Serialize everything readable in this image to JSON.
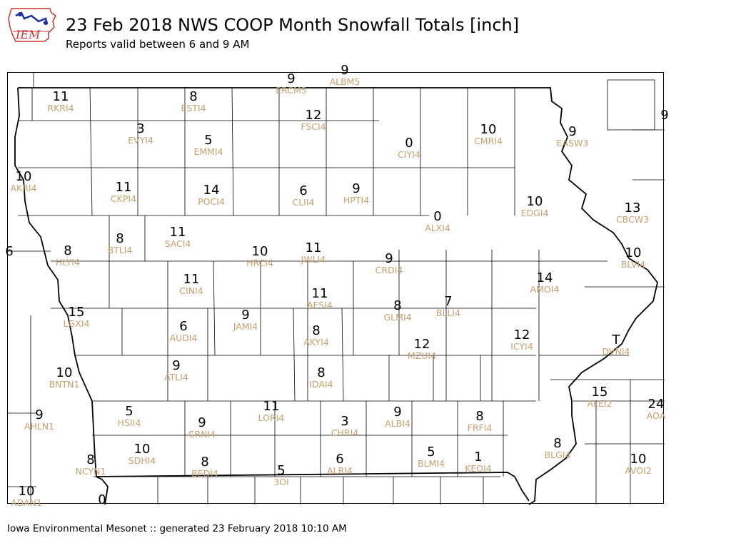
{
  "logo": {
    "text": "IEM"
  },
  "header": {
    "title": "23 Feb 2018 NWS COOP Month Snowfall Totals [inch]",
    "subtitle": "Reports valid between 6 and 9 AM"
  },
  "footer": {
    "text": "Iowa Environmental Mesonet :: generated 23 February 2018 10:10 AM"
  },
  "colors": {
    "value": "#000000",
    "station_id": "#c8a070",
    "border": "#000000"
  },
  "stations": [
    {
      "v": "11",
      "id": "RKRI4"
    },
    {
      "v": "8",
      "id": "ESTI4"
    },
    {
      "v": "9",
      "id": "ERCM5"
    },
    {
      "v": "9",
      "id": "ALBM5"
    },
    {
      "v": "12",
      "id": "FSCI4"
    },
    {
      "v": "3",
      "id": "EVYI4"
    },
    {
      "v": "5",
      "id": "EMMI4"
    },
    {
      "v": "0",
      "id": "CIYI4"
    },
    {
      "v": "10",
      "id": "CMRI4"
    },
    {
      "v": "9",
      "id": "EASW3"
    },
    {
      "v": "9",
      "id": ""
    },
    {
      "v": "10",
      "id": "AKRI4"
    },
    {
      "v": "11",
      "id": "CKPI4"
    },
    {
      "v": "14",
      "id": "POCI4"
    },
    {
      "v": "6",
      "id": "CLII4"
    },
    {
      "v": "9",
      "id": "HPTI4"
    },
    {
      "v": "10",
      "id": "EDGI4"
    },
    {
      "v": "13",
      "id": "CBCW3"
    },
    {
      "v": "0",
      "id": "ALXI4"
    },
    {
      "v": "8",
      "id": "BTLI4"
    },
    {
      "v": "11",
      "id": "SACI4"
    },
    {
      "v": "6",
      "id": ""
    },
    {
      "v": "8",
      "id": "HLYI4"
    },
    {
      "v": "10",
      "id": "HRCI4"
    },
    {
      "v": "11",
      "id": "JWLI4"
    },
    {
      "v": "9",
      "id": "CRDI4"
    },
    {
      "v": "10",
      "id": "BLVI4"
    },
    {
      "v": "11",
      "id": "CINI4"
    },
    {
      "v": "14",
      "id": "AMOI4"
    },
    {
      "v": "11",
      "id": "AESI4"
    },
    {
      "v": "15",
      "id": "LGXI4"
    },
    {
      "v": "9",
      "id": "JAMI4"
    },
    {
      "v": "8",
      "id": "GLMI4"
    },
    {
      "v": "7",
      "id": "BLLI4"
    },
    {
      "v": "6",
      "id": "AUDI4"
    },
    {
      "v": "8",
      "id": "AKYI4"
    },
    {
      "v": "12",
      "id": "ICYI4"
    },
    {
      "v": "T",
      "id": "DVNI4"
    },
    {
      "v": "12",
      "id": "MZUI4"
    },
    {
      "v": "9",
      "id": "ATLI4"
    },
    {
      "v": "10",
      "id": "BNTN1"
    },
    {
      "v": "8",
      "id": "IDAI4"
    },
    {
      "v": "15",
      "id": "ALEI2"
    },
    {
      "v": "24",
      "id": "AOA"
    },
    {
      "v": "5",
      "id": "HSII4"
    },
    {
      "v": "11",
      "id": "LORI4"
    },
    {
      "v": "9",
      "id": "AHLN1"
    },
    {
      "v": "9",
      "id": "CRNI4"
    },
    {
      "v": "3",
      "id": "CHRI4"
    },
    {
      "v": "9",
      "id": "ALBI4"
    },
    {
      "v": "8",
      "id": "FRFI4"
    },
    {
      "v": "10",
      "id": "SDHI4"
    },
    {
      "v": "8",
      "id": "BLGI4"
    },
    {
      "v": "8",
      "id": "NCYN1"
    },
    {
      "v": "8",
      "id": "BEDI4"
    },
    {
      "v": "5",
      "id": "3OI"
    },
    {
      "v": "6",
      "id": "ALRI4"
    },
    {
      "v": "5",
      "id": "BLMI4"
    },
    {
      "v": "1",
      "id": "KEOI4"
    },
    {
      "v": "10",
      "id": "AVOI2"
    },
    {
      "v": "10",
      "id": "ADAN1"
    },
    {
      "v": "0",
      "id": ""
    }
  ]
}
